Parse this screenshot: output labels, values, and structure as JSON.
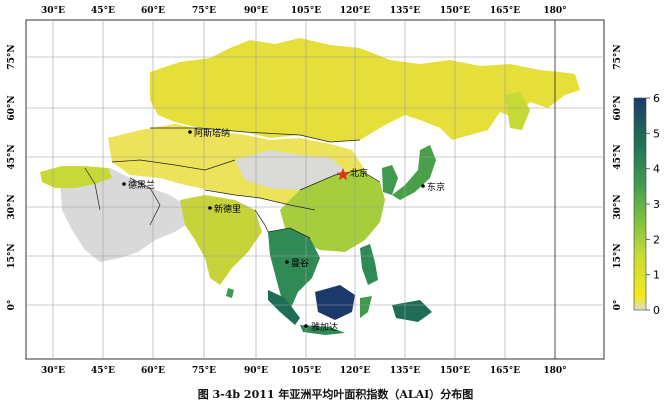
{
  "figure": {
    "caption": "图 3-4b 2011 年亚洲平均叶面积指数（ALAI）分布图"
  },
  "map": {
    "lon_labels": [
      "30°E",
      "45°E",
      "60°E",
      "75°E",
      "90°E",
      "105°E",
      "120°E",
      "135°E",
      "150°E",
      "165°E",
      "180°"
    ],
    "lat_labels": [
      "75°N",
      "60°N",
      "45°N",
      "30°N",
      "15°N",
      "0°"
    ],
    "cities": [
      {
        "name": "北京",
        "marker": "star"
      },
      {
        "name": "东京",
        "marker": "dot"
      },
      {
        "name": "阿斯塔纳",
        "marker": "dot"
      },
      {
        "name": "德黑兰",
        "marker": "dot"
      },
      {
        "name": "新德里",
        "marker": "dot"
      },
      {
        "name": "曼谷",
        "marker": "dot"
      },
      {
        "name": "雅加达",
        "marker": "dot"
      }
    ],
    "colors": {
      "ocean": "#ffffff",
      "no_data": "#d9d9d9",
      "low": "#f2e31c",
      "mid": "#7fc241",
      "high": "#1e6e57",
      "highest": "#1b3a6b",
      "star": "#e0301e"
    }
  },
  "colorbar": {
    "ticks": [
      "0",
      "1",
      "2",
      "3",
      "4",
      "5",
      "6"
    ],
    "min": 0,
    "max": 6,
    "stops": [
      "#d9d9d9",
      "#f5e81c",
      "#c9dc32",
      "#7fc241",
      "#3f9a4e",
      "#1e6e57",
      "#1b3a6b"
    ]
  }
}
